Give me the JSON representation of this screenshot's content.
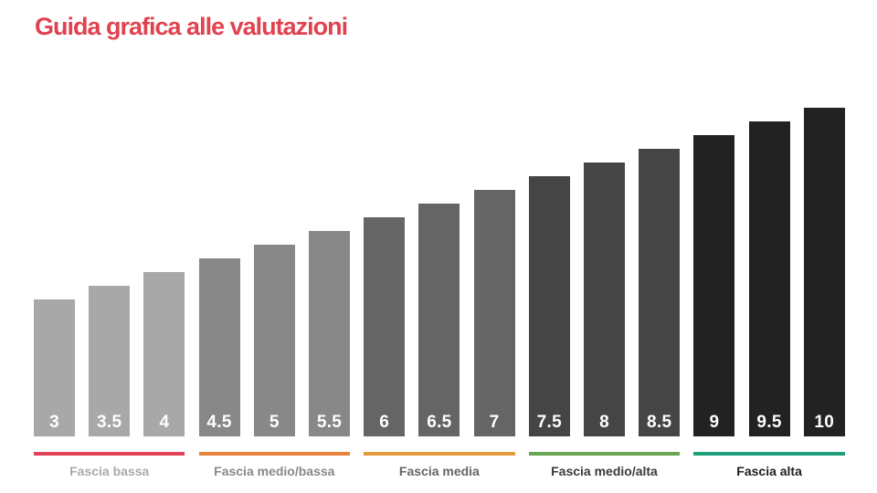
{
  "title": "Guida grafica alle valutazioni",
  "title_color": "#e0424f",
  "chart_data": {
    "type": "bar",
    "title": "Guida grafica alle valutazioni",
    "xlabel": "",
    "ylabel": "",
    "categories": [
      "3",
      "3.5",
      "4",
      "4.5",
      "5",
      "5.5",
      "6",
      "6.5",
      "7",
      "7.5",
      "8",
      "8.5",
      "9",
      "9.5",
      "10"
    ],
    "values": [
      3,
      3.5,
      4,
      4.5,
      5,
      5.5,
      6,
      6.5,
      7,
      7.5,
      8,
      8.5,
      9,
      9.5,
      10
    ],
    "ylim": [
      0,
      10
    ],
    "grid": false,
    "legend_position": "bottom",
    "bar_colors": [
      "#a8a8a8",
      "#a8a8a8",
      "#a8a8a8",
      "#888888",
      "#888888",
      "#888888",
      "#656565",
      "#656565",
      "#656565",
      "#454545",
      "#454545",
      "#454545",
      "#222222",
      "#222222",
      "#222222"
    ],
    "bands": [
      {
        "label": "Fascia bassa",
        "range": [
          "3",
          "4"
        ],
        "line_color": "#e0425a",
        "text_color": "#aaaaaa"
      },
      {
        "label": "Fascia medio/bassa",
        "range": [
          "4.5",
          "5.5"
        ],
        "line_color": "#e8833a",
        "text_color": "#888888"
      },
      {
        "label": "Fascia media",
        "range": [
          "6",
          "7"
        ],
        "line_color": "#e39a3b",
        "text_color": "#656565"
      },
      {
        "label": "Fascia medio/alta",
        "range": [
          "7.5",
          "8.5"
        ],
        "line_color": "#6aa552",
        "text_color": "#3a3a3a"
      },
      {
        "label": "Fascia alta",
        "range": [
          "9",
          "10"
        ],
        "line_color": "#1f9e7a",
        "text_color": "#1e1e1e"
      }
    ]
  }
}
